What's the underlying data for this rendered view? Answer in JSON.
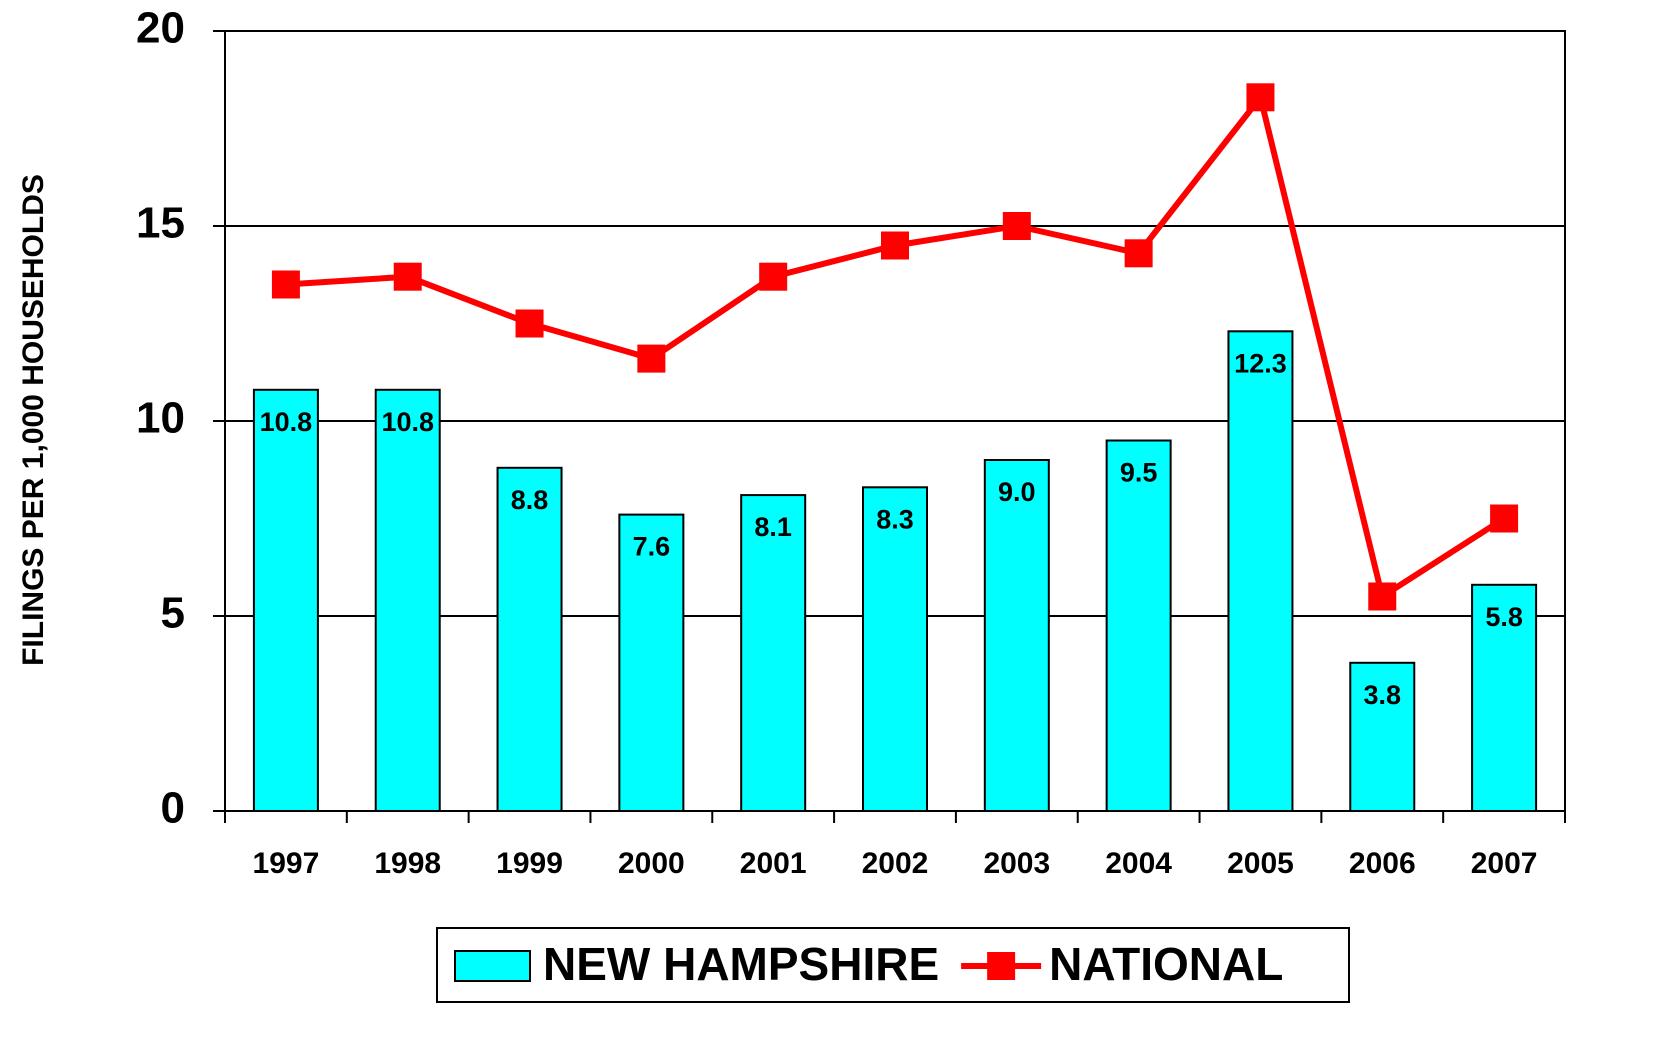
{
  "chart_data": {
    "type": "bar_line",
    "y_label": "FILINGS PER 1,000 HOUSEHOLDS",
    "categories": [
      "1997",
      "1998",
      "1999",
      "2000",
      "2001",
      "2002",
      "2003",
      "2004",
      "2005",
      "2006",
      "2007"
    ],
    "series": [
      {
        "name": "NEW HAMPSHIRE",
        "type": "bar",
        "color": "#00ffff",
        "values": [
          10.8,
          10.8,
          8.8,
          7.6,
          8.1,
          8.3,
          9.0,
          9.5,
          12.3,
          3.8,
          5.8
        ],
        "value_labels": [
          "10.8",
          "10.8",
          "8.8",
          "7.6",
          "8.1",
          "8.3",
          "9.0",
          "9.5",
          "12.3",
          "3.8",
          "5.8"
        ]
      },
      {
        "name": "NATIONAL",
        "type": "line",
        "color": "#ff0000",
        "values": [
          13.5,
          13.7,
          12.5,
          11.6,
          13.7,
          14.5,
          15.0,
          14.3,
          18.3,
          5.5,
          7.5
        ]
      }
    ],
    "ylim": [
      0,
      20
    ],
    "yticks": [
      0,
      5,
      10,
      15,
      20
    ],
    "grid": true,
    "legend": "bottom"
  }
}
